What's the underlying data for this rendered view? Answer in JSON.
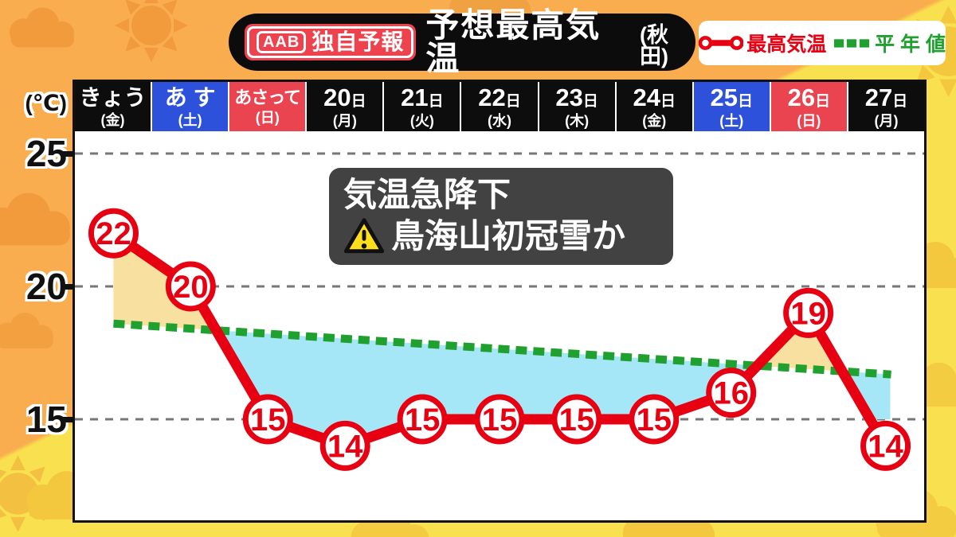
{
  "program_header": {
    "station": "AAB",
    "badge": "独自予報",
    "title": "予想最高気温",
    "region": "(秋田)"
  },
  "legend": {
    "max_temp": {
      "label": "最高気温",
      "color": "#e60012"
    },
    "normal": {
      "label": "平 年 値",
      "color": "#1fa02f"
    }
  },
  "y_axis": {
    "unit": "(℃)",
    "ticks": [
      "25",
      "20",
      "15"
    ]
  },
  "days": [
    {
      "label": "きょう",
      "weekday": "(金)",
      "bg": "black"
    },
    {
      "label": "あ す",
      "weekday": "(土)",
      "bg": "blue"
    },
    {
      "label": "あさって",
      "weekday": "(日)",
      "bg": "red"
    },
    {
      "label": "20日",
      "weekday": "(月)",
      "bg": "black"
    },
    {
      "label": "21日",
      "weekday": "(火)",
      "bg": "black"
    },
    {
      "label": "22日",
      "weekday": "(水)",
      "bg": "black"
    },
    {
      "label": "23日",
      "weekday": "(木)",
      "bg": "black"
    },
    {
      "label": "24日",
      "weekday": "(金)",
      "bg": "black"
    },
    {
      "label": "25日",
      "weekday": "(土)",
      "bg": "blue"
    },
    {
      "label": "26日",
      "weekday": "(日)",
      "bg": "red"
    },
    {
      "label": "27日",
      "weekday": "(月)",
      "bg": "black"
    }
  ],
  "annotation": {
    "line1": "気温急降下",
    "line2": "鳥海山初冠雪か",
    "icon": "warning-triangle"
  },
  "chart_data": {
    "type": "line",
    "title": "予想最高気温(秋田)",
    "categories": [
      "きょう(金)",
      "あす(土)",
      "あさって(日)",
      "20日(月)",
      "21日(火)",
      "22日(水)",
      "23日(木)",
      "24日(金)",
      "25日(土)",
      "26日(日)",
      "27日(月)"
    ],
    "series": [
      {
        "name": "最高気温",
        "values": [
          22,
          20,
          15,
          14,
          15,
          15,
          15,
          15,
          16,
          19,
          14
        ],
        "color": "#e60012",
        "style": "line-with-circled-value-markers"
      },
      {
        "name": "平年値",
        "values": [
          18.6,
          18.4,
          18.2,
          18.0,
          17.8,
          17.7,
          17.5,
          17.3,
          17.1,
          16.9,
          16.7
        ],
        "color": "#1fa02f",
        "style": "thick-dashed-line"
      }
    ],
    "ylabel": "(℃)",
    "yticks": [
      25,
      20,
      15
    ],
    "ylim": [
      11,
      25.8
    ],
    "grid": "horizontal-dashed",
    "legend_position": "top-right",
    "fills": {
      "above_normal_color": "#f8e0a0",
      "below_normal_color": "#a5e6f7"
    },
    "header_colors": {
      "weekday_bg": "#0d0d0d",
      "saturday_bg": "#2e51db",
      "sunday_bg": "#ea4450"
    }
  }
}
